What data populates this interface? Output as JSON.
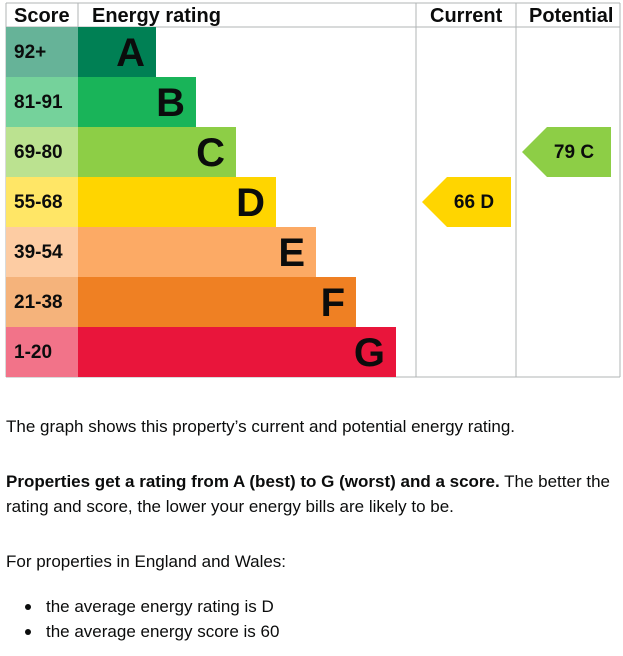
{
  "chart_data": {
    "type": "table",
    "headers": {
      "score": "Score",
      "rating": "Energy rating",
      "current": "Current",
      "potential": "Potential"
    },
    "bands": [
      {
        "letter": "A",
        "range": "92+",
        "min": 92,
        "max": 100,
        "color": "#008054",
        "score_color": "#66b398"
      },
      {
        "letter": "B",
        "range": "81-91",
        "min": 81,
        "max": 91,
        "color": "#19b459",
        "score_color": "#75d29b"
      },
      {
        "letter": "C",
        "range": "69-80",
        "min": 69,
        "max": 80,
        "color": "#8dce46",
        "score_color": "#bbe290"
      },
      {
        "letter": "D",
        "range": "55-68",
        "min": 55,
        "max": 68,
        "color": "#ffd500",
        "score_color": "#ffe666"
      },
      {
        "letter": "E",
        "range": "39-54",
        "min": 39,
        "max": 54,
        "color": "#fcaa65",
        "score_color": "#fdcca3"
      },
      {
        "letter": "F",
        "range": "21-38",
        "min": 21,
        "max": 38,
        "color": "#ef8023",
        "score_color": "#f5b37b"
      },
      {
        "letter": "G",
        "range": "1-20",
        "min": 1,
        "max": 20,
        "color": "#e9153b",
        "score_color": "#f27389"
      }
    ],
    "current": {
      "score": 66,
      "letter": "D",
      "label": "66  D"
    },
    "potential": {
      "score": 79,
      "letter": "C",
      "label": "79  C"
    }
  },
  "text": {
    "caption": "The graph shows this property’s current and potential energy rating.",
    "para_bold": "Properties get a rating from A (best) to G (worst) and a score.",
    "para_rest": " The better the rating and score, the lower your energy bills are likely to be.",
    "intro": "For properties in England and Wales:",
    "bullets": [
      "the average energy rating is D",
      "the average energy score is 60"
    ]
  }
}
